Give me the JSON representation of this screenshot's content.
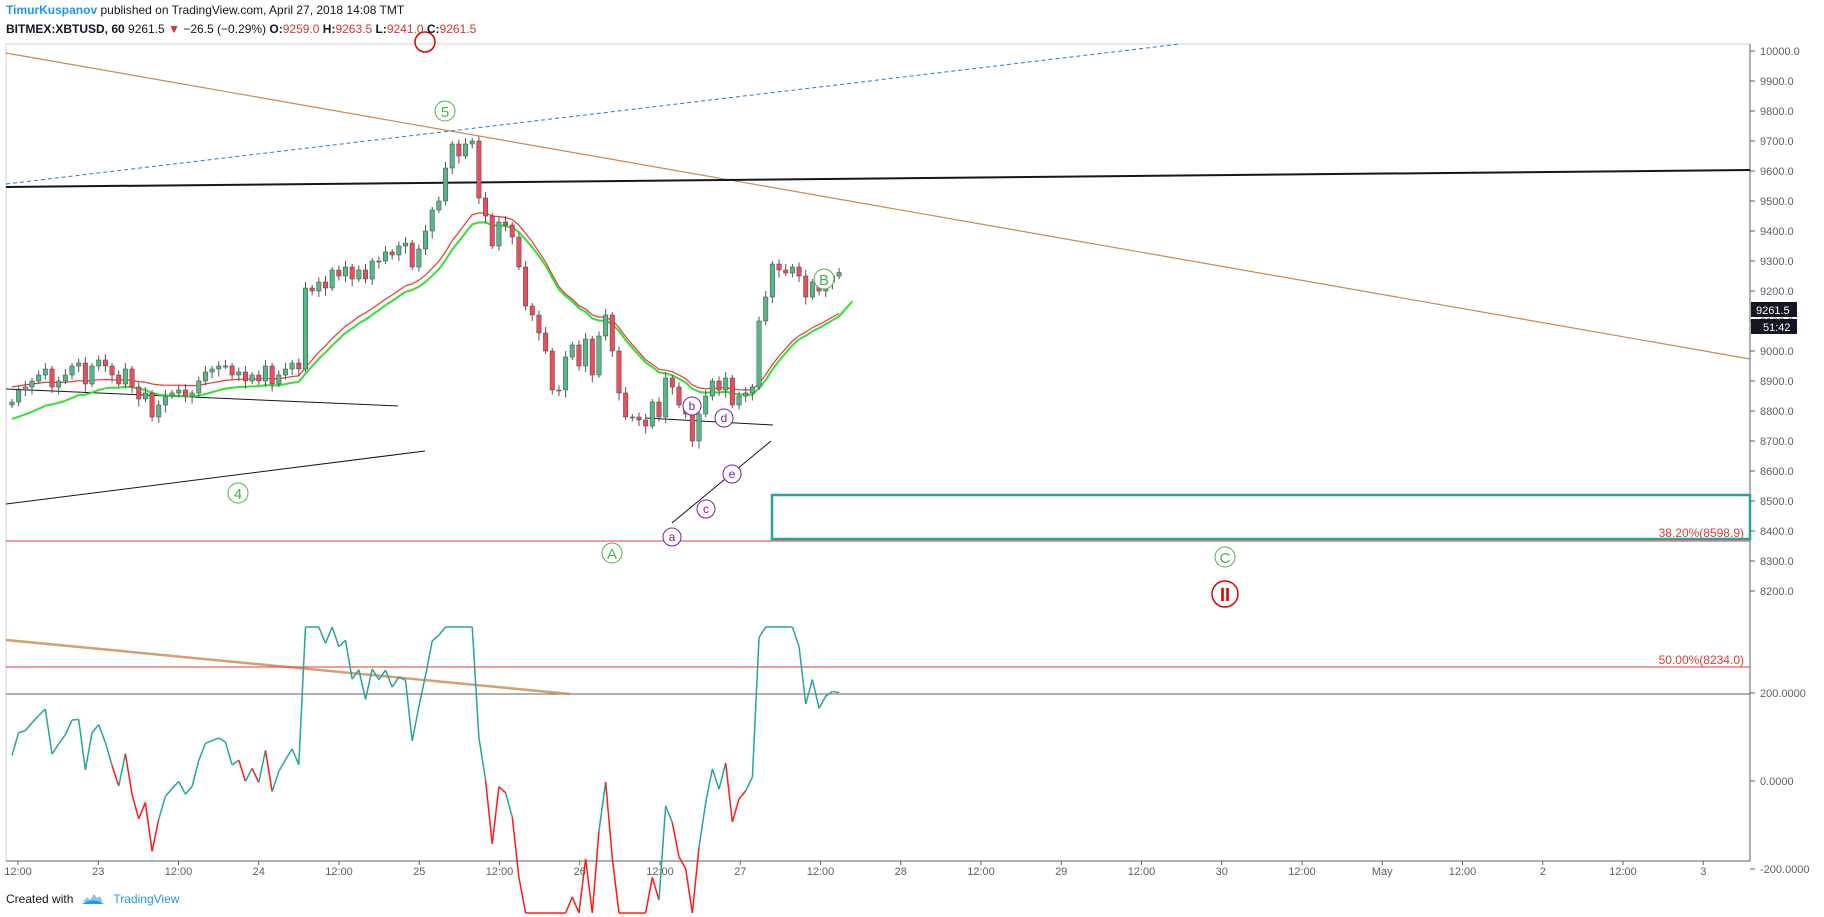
{
  "header": {
    "author": "TimurKuspanov",
    "published": "published on TradingView.com, April 27, 2018 14:08 TMT"
  },
  "symbol_line": {
    "symbol": "BITMEX:XBTUSD, 60",
    "last": "9261.5",
    "arrow": "▼",
    "change": "−26.5 (−0.29%)",
    "open_label": "O:",
    "open": "9259.0",
    "high_label": "H:",
    "high": "9263.5",
    "low_label": "L:",
    "low": "9241.0",
    "close_label": "C:",
    "close": "9261.5"
  },
  "footer": {
    "created_with": "Created with",
    "brand": "TradingView"
  },
  "colors": {
    "up": "#53b987",
    "down": "#eb4d5c",
    "ema_fast": "#e53935",
    "ema_slow": "#34e034",
    "cci_up": "#26a69a",
    "cci_down": "#ff1a1a",
    "wave_green": "#4caf50",
    "wave_purple": "#7b1fa2",
    "fib": "#e53935",
    "box": "#26a69a",
    "trend_brown": "#c98a4b"
  },
  "chart_data": [
    {
      "type": "candlestick",
      "name": "BITMEX:XBTUSD, 60",
      "y_axis_ticks": [
        "10000.0",
        "9900.0",
        "9800.0",
        "9700.0",
        "9600.0",
        "9500.0",
        "9400.0",
        "9300.0",
        "9200.0",
        "9100.0",
        "9000.0",
        "8900.0",
        "8800.0",
        "8700.0",
        "8600.0",
        "8500.0",
        "8400.0",
        "8300.0",
        "8200.0"
      ],
      "ylim": [
        8160,
        10020
      ],
      "x_axis_ticks": [
        "12:00",
        "23",
        "12:00",
        "24",
        "12:00",
        "25",
        "12:00",
        "26",
        "12:00",
        "27",
        "12:00",
        "28",
        "12:00",
        "29",
        "12:00",
        "30",
        "12:00",
        "May",
        "12:00",
        "2",
        "12:00",
        "3"
      ],
      "last_price_label": "9261.5",
      "countdown_label": "51:42",
      "closes": [
        8830,
        8870,
        8880,
        8900,
        8920,
        8940,
        8880,
        8900,
        8920,
        8950,
        8960,
        8890,
        8950,
        8970,
        8950,
        8920,
        8890,
        8940,
        8880,
        8840,
        8860,
        8780,
        8820,
        8850,
        8860,
        8870,
        8850,
        8860,
        8900,
        8930,
        8940,
        8950,
        8950,
        8920,
        8930,
        8900,
        8920,
        8900,
        8950,
        8890,
        8920,
        8940,
        8960,
        8940,
        9210,
        9200,
        9230,
        9210,
        9270,
        9250,
        9280,
        9240,
        9270,
        9240,
        9300,
        9300,
        9330,
        9320,
        9350,
        9360,
        9280,
        9340,
        9400,
        9470,
        9500,
        9610,
        9690,
        9650,
        9690,
        9700,
        9510,
        9450,
        9350,
        9430,
        9420,
        9380,
        9280,
        9150,
        9120,
        9060,
        9000,
        8870,
        8870,
        8980,
        9020,
        8950,
        9040,
        8920,
        9050,
        9120,
        9000,
        8860,
        8780,
        8780,
        8770,
        8750,
        8830,
        8780,
        8910,
        8880,
        8820,
        8790,
        8700,
        8790,
        8850,
        8900,
        8870,
        8910,
        8820,
        8850,
        8860,
        8880,
        9100,
        9180,
        9290,
        9270,
        9260,
        9280,
        9250,
        9180,
        9230,
        9200,
        9230,
        9250,
        9261.5
      ],
      "ema_fast": [
        8880,
        8884,
        8887,
        8890,
        8893,
        8896,
        8895,
        8895,
        8896,
        8898,
        8901,
        8900,
        8902,
        8904,
        8905,
        8904,
        8903,
        8904,
        8902,
        8898,
        8896,
        8890,
        8887,
        8886,
        8886,
        8886,
        8885,
        8884,
        8886,
        8890,
        8894,
        8898,
        8902,
        8904,
        8906,
        8906,
        8907,
        8906,
        8909,
        8907,
        8908,
        8911,
        8915,
        8917,
        8945,
        8970,
        8996,
        9017,
        9042,
        9062,
        9083,
        9098,
        9115,
        9127,
        9142,
        9157,
        9173,
        9187,
        9202,
        9217,
        9224,
        9236,
        9253,
        9276,
        9299,
        9331,
        9368,
        9396,
        9426,
        9454,
        9460,
        9460,
        9450,
        9448,
        9445,
        9438,
        9420,
        9392,
        9364,
        9330,
        9297,
        9254,
        9215,
        9190,
        9173,
        9151,
        9140,
        9120,
        9113,
        9113,
        9102,
        9078,
        9048,
        9021,
        8996,
        8971,
        8956,
        8939,
        8936,
        8931,
        8920,
        8907,
        8887,
        8877,
        8874,
        8876,
        8876,
        8879,
        8873,
        8871,
        8870,
        8871,
        8892,
        8921,
        8955,
        8983,
        9008,
        9033,
        9051,
        9063,
        9078,
        9088,
        9100,
        9113,
        9125
      ]
    },
    {
      "type": "line",
      "name": "CCI",
      "y_axis_ticks": [
        "200.0000",
        "0.0000",
        "-200.0000"
      ],
      "ylim": [
        -320,
        360
      ]
    }
  ],
  "annotations": {
    "wave_labels": {
      "w5": "5",
      "w4": "4",
      "wA": "A",
      "wB": "B",
      "wC": "C",
      "wII": "II",
      "a": "a",
      "b": "b",
      "c": "c",
      "d": "d",
      "e": "e"
    },
    "fib1": "38.20%(8598.9)",
    "fib2": "50.00%(8234.0)"
  }
}
